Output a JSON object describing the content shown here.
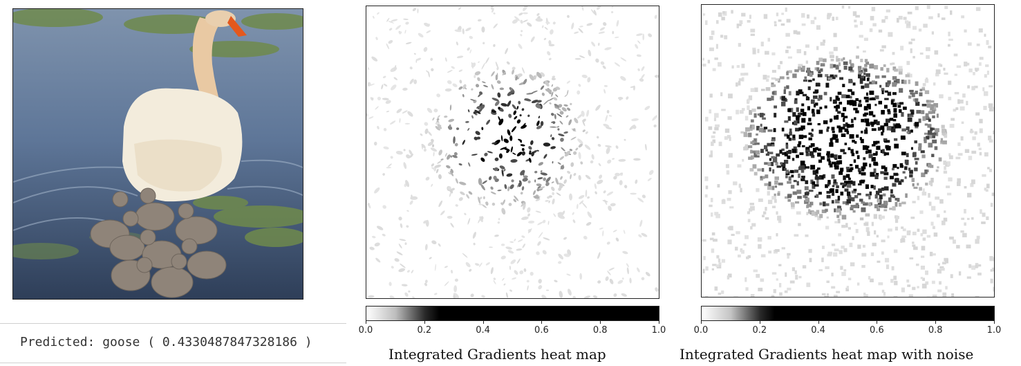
{
  "prediction": {
    "text": "Predicted: goose ( 0.4330487847328186 )"
  },
  "photo": {
    "subject": "swan with cygnets on lake"
  },
  "chart_data": [
    {
      "type": "heatmap",
      "title": "",
      "caption": "Integrated Gradients heat map",
      "colormap": "gray_r",
      "colorbar": {
        "range": [
          0.0,
          1.0
        ],
        "ticks": [
          "0.0",
          "0.2",
          "0.4",
          "0.6",
          "0.8",
          "1.0"
        ]
      },
      "grid": false
    },
    {
      "type": "heatmap",
      "title": "",
      "caption": "Integrated Gradients heat map with noise",
      "colormap": "gray_r",
      "colorbar": {
        "range": [
          0.0,
          1.0
        ],
        "ticks": [
          "0.0",
          "0.2",
          "0.4",
          "0.6",
          "0.8",
          "1.0"
        ]
      },
      "grid": false
    }
  ],
  "colors": {
    "water": "#5b7296",
    "swan": "#f1ead9",
    "cygnet": "#8f8479",
    "lily_pad": "#6f8a4c"
  }
}
